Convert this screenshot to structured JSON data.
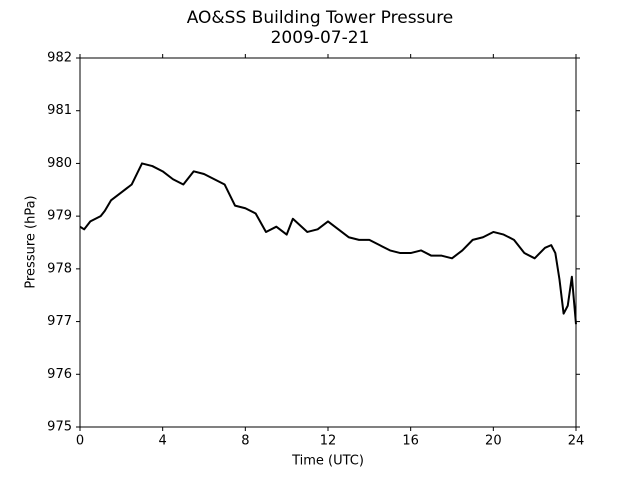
{
  "chart_data": {
    "type": "line",
    "title": "AO&SS Building Tower Pressure",
    "subtitle": "2009-07-21",
    "x_label": "Time (UTC)",
    "y_label": "Pressure (hPa)",
    "x": [
      0,
      0.2,
      0.5,
      1,
      1.2,
      1.5,
      2,
      2.5,
      3,
      3.5,
      4,
      4.5,
      5,
      5.5,
      6,
      6.5,
      7,
      7.5,
      8,
      8.5,
      9,
      9.5,
      10,
      10.3,
      11,
      11.5,
      12,
      12.5,
      13,
      13.5,
      14,
      14.5,
      15,
      15.5,
      16,
      16.5,
      17,
      17.5,
      18,
      18.5,
      19,
      19.5,
      20,
      20.5,
      21,
      21.5,
      22,
      22.5,
      22.8,
      23,
      23.2,
      23.4,
      23.6,
      23.8,
      24
    ],
    "series": [
      {
        "name": "Pressure",
        "color": "#000000",
        "values": [
          978.8,
          978.75,
          978.9,
          979.0,
          979.1,
          979.3,
          979.45,
          979.6,
          980.0,
          979.95,
          979.85,
          979.7,
          979.6,
          979.85,
          979.8,
          979.7,
          979.6,
          979.2,
          979.15,
          979.05,
          978.7,
          978.8,
          978.65,
          978.95,
          978.7,
          978.75,
          978.9,
          978.75,
          978.6,
          978.55,
          978.55,
          978.45,
          978.35,
          978.3,
          978.3,
          978.35,
          978.25,
          978.25,
          978.2,
          978.35,
          978.55,
          978.6,
          978.7,
          978.65,
          978.55,
          978.3,
          978.2,
          978.4,
          978.45,
          978.3,
          977.8,
          977.15,
          977.3,
          977.85,
          976.95
        ]
      }
    ],
    "xlim": [
      0,
      24
    ],
    "xticks": [
      0,
      4,
      8,
      12,
      16,
      20,
      24
    ],
    "ylim": [
      975,
      982
    ],
    "yticks": [
      975,
      976,
      977,
      978,
      979,
      980,
      981,
      982
    ]
  }
}
